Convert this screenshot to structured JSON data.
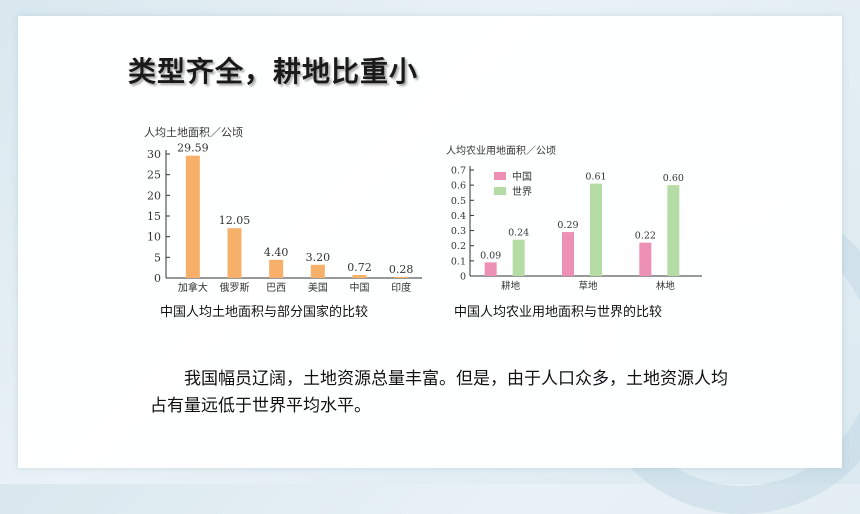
{
  "page": {
    "title": "类型齐全，耕地比重小",
    "paragraph": "我国幅员辽阔，土地资源总量丰富。但是，由于人口众多，土地资源人均占有量远低于世界平均水平。"
  },
  "chart_data": [
    {
      "type": "bar",
      "ylabel": "人均土地面积／公顷",
      "caption": "中国人均土地面积与部分国家的比较",
      "categories": [
        "加拿大",
        "俄罗斯",
        "巴西",
        "美国",
        "中国",
        "印度"
      ],
      "values": [
        29.59,
        12.05,
        4.4,
        3.2,
        0.72,
        0.28
      ],
      "value_labels": [
        "29.59",
        "12.05",
        "4.40",
        "3.20",
        "0.72",
        "0.28"
      ],
      "ylim": [
        0,
        30
      ],
      "yticks": [
        0,
        5,
        10,
        15,
        20,
        25,
        30
      ],
      "color": "#f6b06a",
      "grid": false
    },
    {
      "type": "bar",
      "ylabel": "人均农业用地面积／公顷",
      "caption": "中国人均农业用地面积与世界的比较",
      "categories": [
        "耕地",
        "草地",
        "林地"
      ],
      "series": [
        {
          "name": "中国",
          "values": [
            0.09,
            0.29,
            0.22
          ],
          "labels": [
            "0.09",
            "0.29",
            "0.22"
          ],
          "color": "#ee8fb6"
        },
        {
          "name": "世界",
          "values": [
            0.24,
            0.61,
            0.6
          ],
          "labels": [
            "0.24",
            "0.61",
            "0.60"
          ],
          "color": "#b5dca4"
        }
      ],
      "ylim": [
        0,
        0.7
      ],
      "yticks": [
        "0",
        "0.1",
        "0.2",
        "0.3",
        "0.4",
        "0.5",
        "0.6",
        "0.7"
      ],
      "legend_position": "top-left",
      "grid": false
    }
  ]
}
